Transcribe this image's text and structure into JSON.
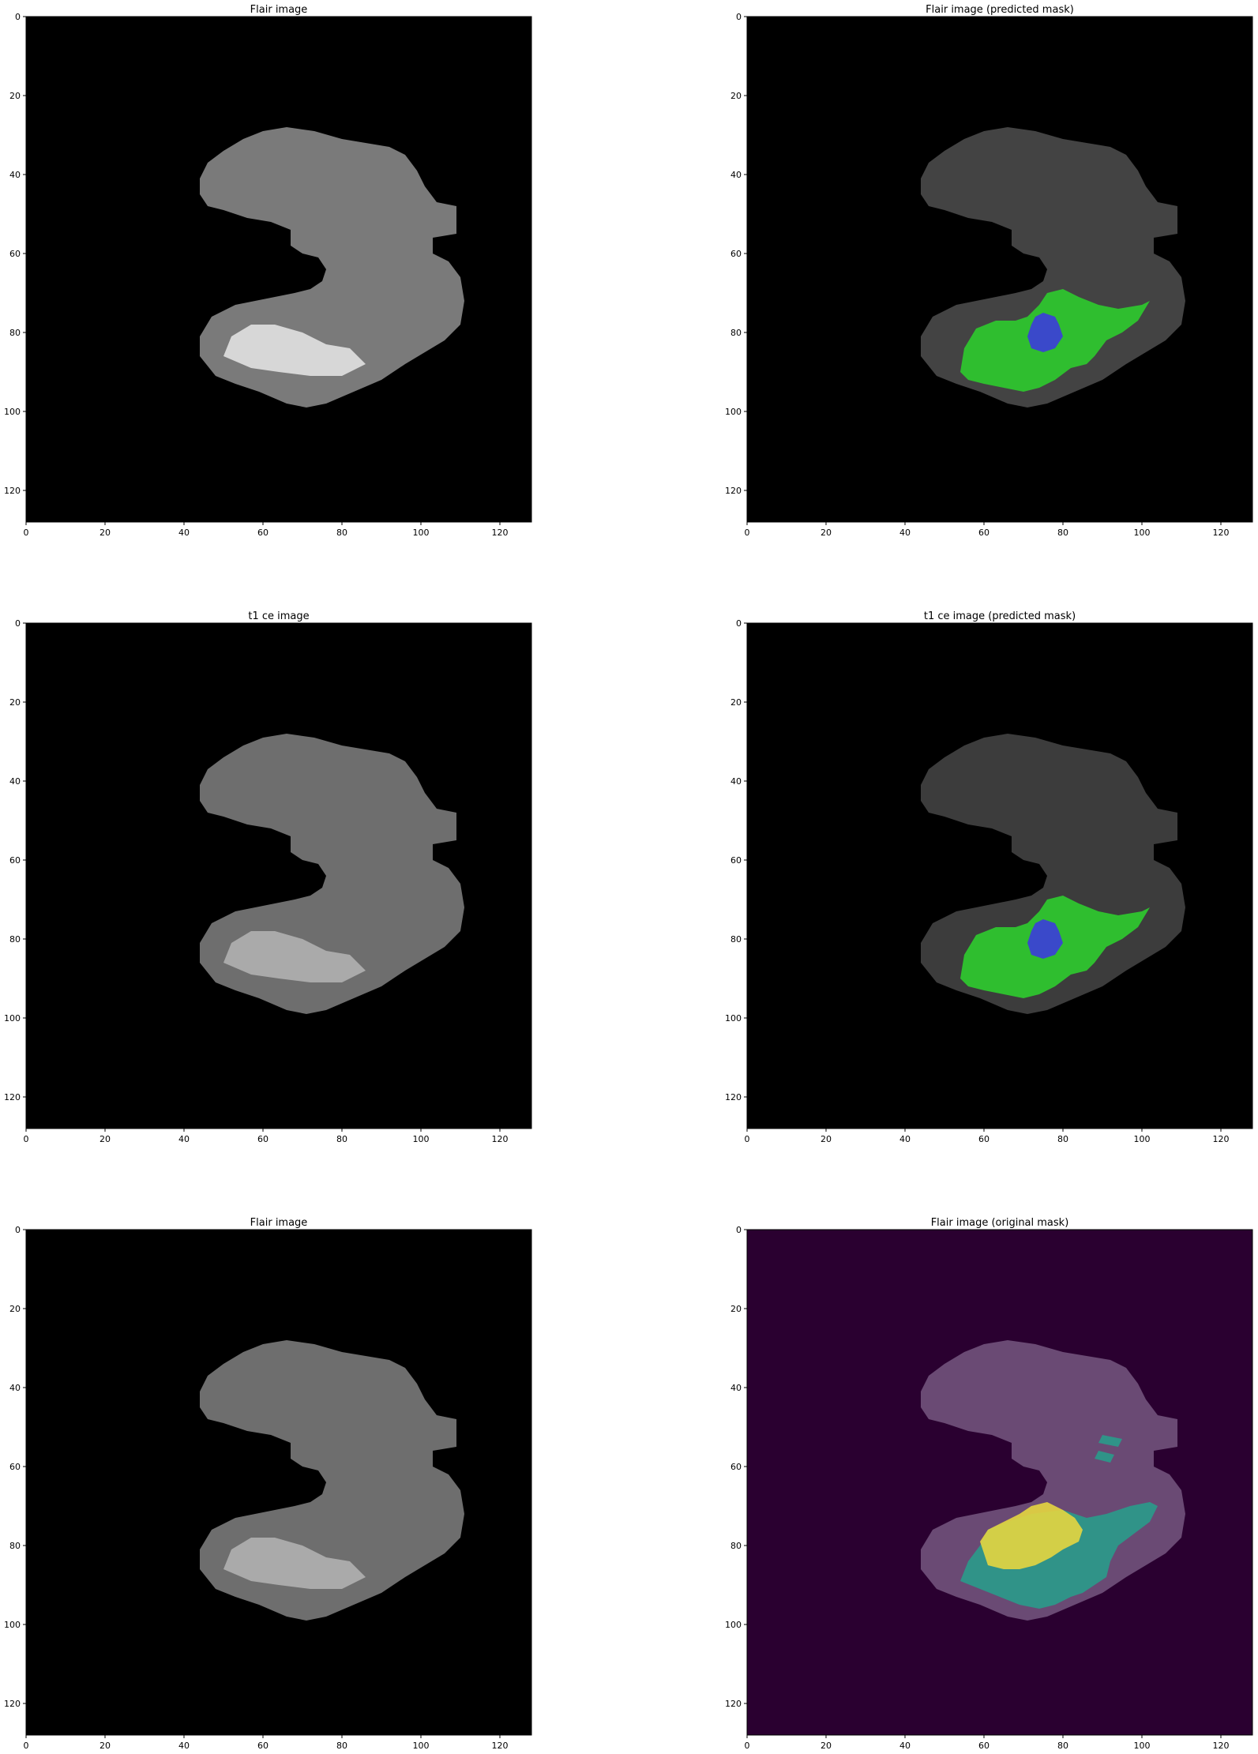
{
  "figure": {
    "panels": [
      {
        "id": "flair",
        "title": "Flair image",
        "background": "#000000",
        "overlay": "none"
      },
      {
        "id": "flair_pred",
        "title": "Flair image (predicted mask)",
        "background": "#000000",
        "overlay": "predicted"
      },
      {
        "id": "t1ce",
        "title": "t1 ce image",
        "background": "#000000",
        "overlay": "none"
      },
      {
        "id": "t1ce_pred",
        "title": "t1 ce image (predicted mask)",
        "background": "#000000",
        "overlay": "predicted"
      },
      {
        "id": "flair_2",
        "title": "Flair image",
        "background": "#000000",
        "overlay": "none"
      },
      {
        "id": "flair_orig",
        "title": "Flair image (original mask)",
        "background": "#2a0030",
        "overlay": "original"
      }
    ],
    "x_ticks": [
      "0",
      "20",
      "40",
      "60",
      "80",
      "100",
      "120"
    ],
    "y_ticks": [
      "0",
      "20",
      "40",
      "60",
      "80",
      "100",
      "120"
    ],
    "image_size": 128
  },
  "colors": {
    "predicted_edema": "#2ecc2e",
    "predicted_core": "#3c3cdc",
    "original_edema": "#2a9b8b",
    "original_core": "#e6d640",
    "original_background": "#2a0030"
  }
}
